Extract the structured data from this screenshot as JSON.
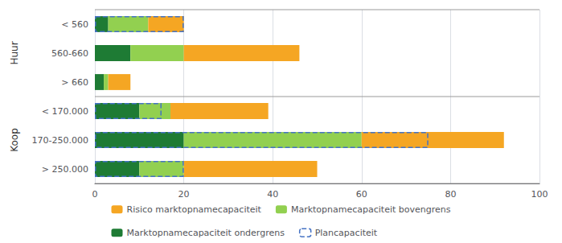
{
  "chart_data": {
    "type": "bar",
    "orientation": "horizontal",
    "stacked": true,
    "categories": [
      "< 560",
      "560-660",
      "> 660",
      "< 170.000",
      "170-250.000",
      "> 250.000"
    ],
    "groups": [
      {
        "label": "Huur",
        "categories": [
          "< 560",
          "560-660",
          "> 660"
        ]
      },
      {
        "label": "Koop",
        "categories": [
          "< 170.000",
          "170-250.000",
          "> 250.000"
        ]
      }
    ],
    "series": [
      {
        "name": "Marktopnamecapaciteit ondergrens",
        "color": "#1E7B34",
        "values": [
          3,
          8,
          2,
          10,
          20,
          10
        ]
      },
      {
        "name": "Marktopnamecapaciteit bovengrens",
        "color": "#92D050",
        "values": [
          9,
          12,
          1,
          7,
          40,
          10
        ]
      },
      {
        "name": "Risico marktopnamecapaciteit",
        "color": "#F5A623",
        "values": [
          8,
          26,
          5,
          22,
          32,
          30
        ]
      },
      {
        "name": "Plancapaciteit",
        "type": "outline",
        "line_style": "dashed",
        "color": "#4472C4",
        "values": [
          20,
          0,
          0,
          15,
          75,
          20
        ]
      }
    ],
    "xlim": [
      0,
      100
    ],
    "xticks": [
      0,
      20,
      40,
      60,
      80,
      100
    ],
    "grid": true,
    "legend": "bottom"
  }
}
